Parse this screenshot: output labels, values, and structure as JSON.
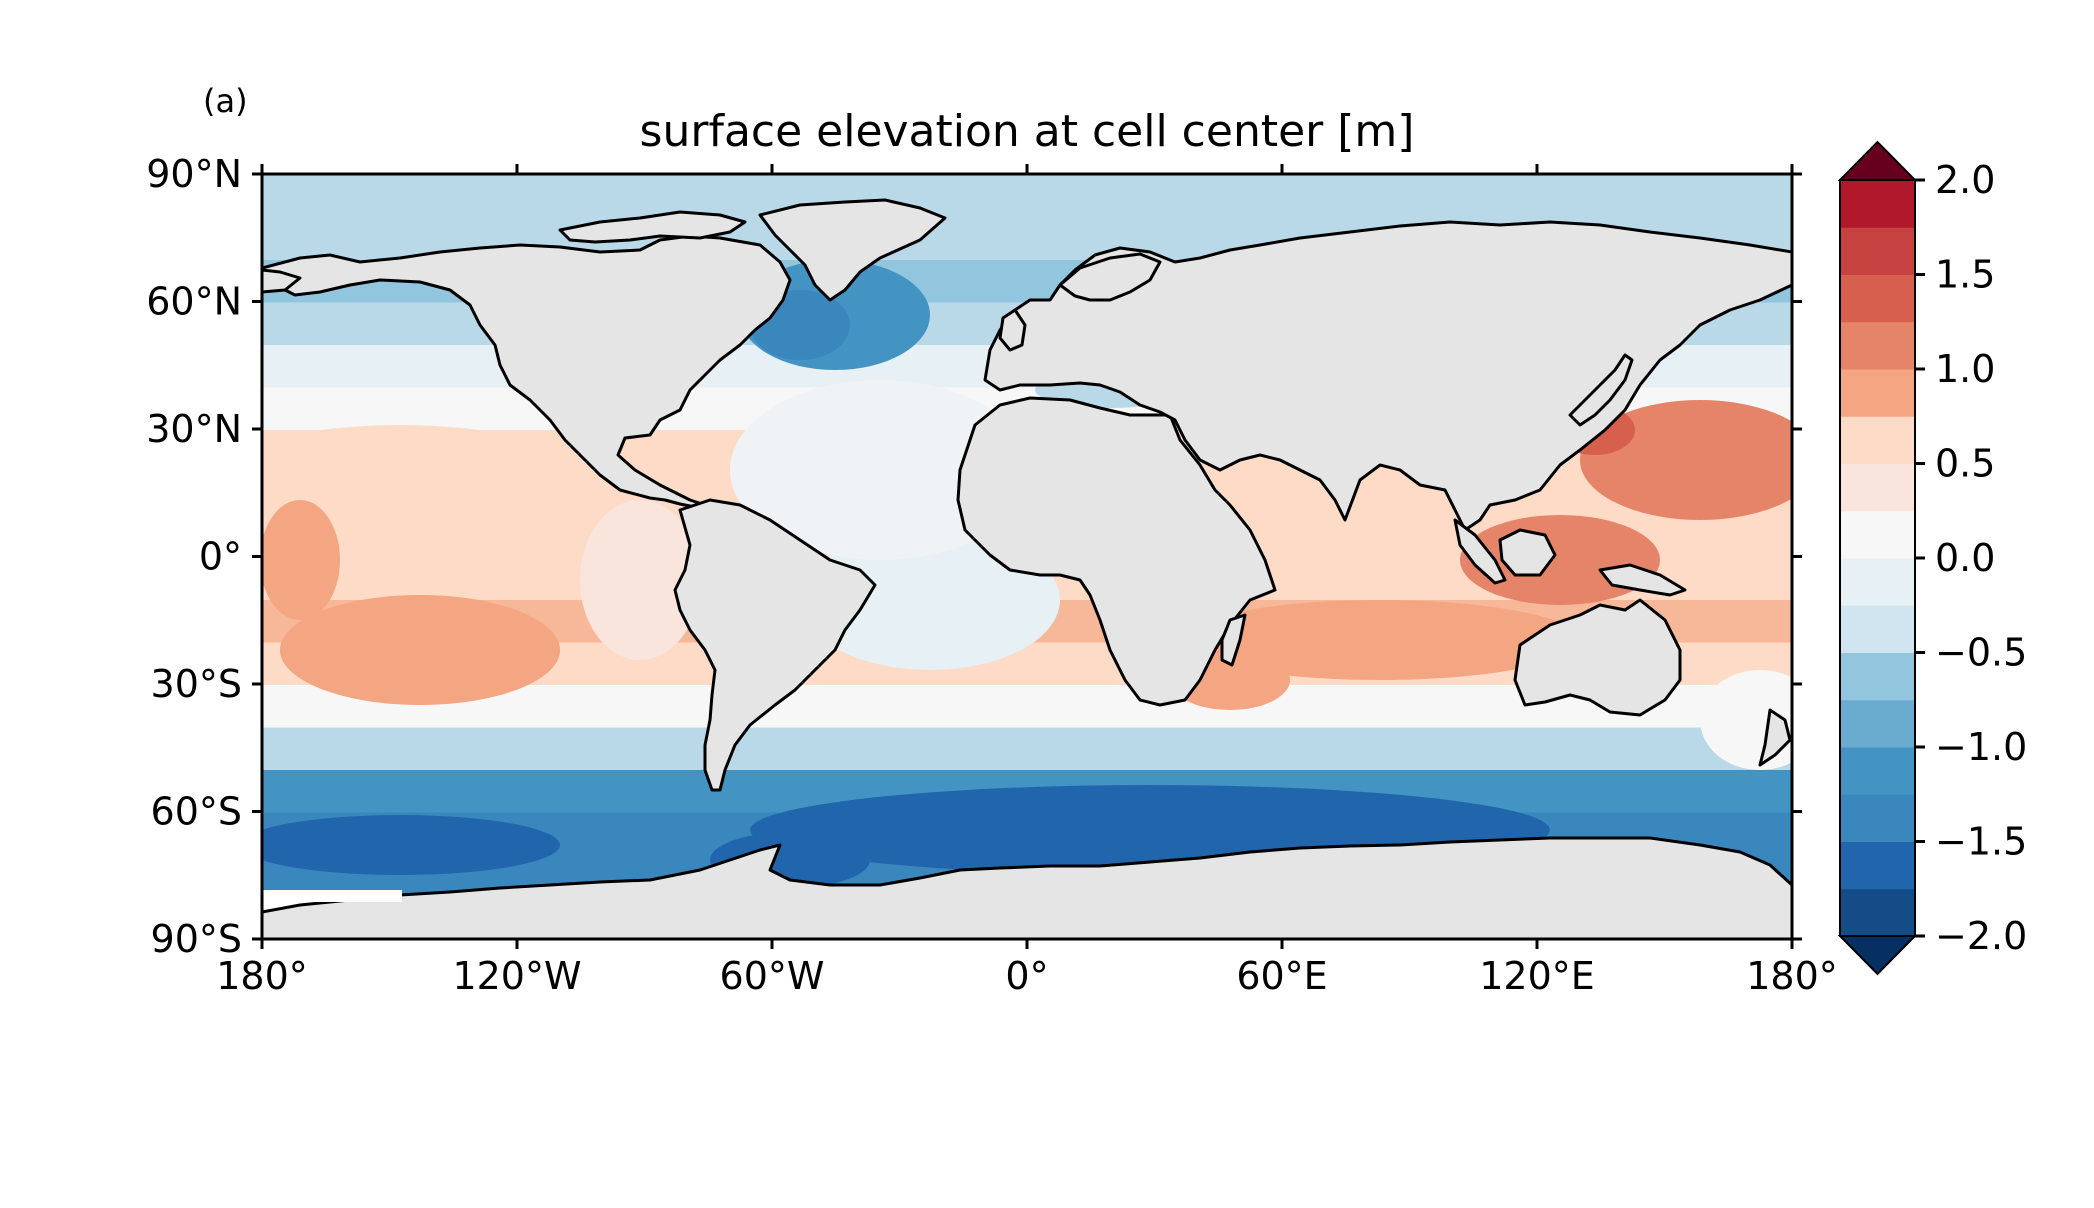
{
  "panel_label": "(a)",
  "title": "surface elevation at cell center [m]",
  "map": {
    "projection": "PlateCarree",
    "lon_range": [
      -180,
      180
    ],
    "lat_range": [
      -90,
      90
    ],
    "x_tick_values": [
      -180,
      -120,
      -60,
      0,
      60,
      120,
      180
    ],
    "x_tick_labels": [
      "180°",
      "120°W",
      "60°W",
      "0°",
      "60°E",
      "120°E",
      "180°"
    ],
    "y_tick_values": [
      90,
      60,
      30,
      0,
      -30,
      -60,
      -90
    ],
    "y_tick_labels": [
      "90°N",
      "60°N",
      "30°N",
      "0°",
      "30°S",
      "60°S",
      "90°S"
    ],
    "land_color": "#e5e5e5",
    "coastline_color": "#000000"
  },
  "colorbar": {
    "colormap": "RdBu_r",
    "range": [
      -2.0,
      2.0
    ],
    "step": 0.25,
    "extend": "both",
    "tick_values": [
      2.0,
      1.5,
      1.0,
      0.5,
      0.0,
      -0.5,
      -1.0,
      -1.5,
      -2.0
    ],
    "tick_labels": [
      "2.0",
      "1.5",
      "1.0",
      "0.5",
      "0.0",
      "−0.5",
      "−1.0",
      "−1.5",
      "−2.0"
    ],
    "colors": [
      "#053061",
      "#134c87",
      "#2166ac",
      "#3a87bd",
      "#4393c3",
      "#6aacd0",
      "#92c5de",
      "#b9d9e9",
      "#d1e5f0",
      "#e6f0f5",
      "#f7f7f7",
      "#f9e5dc",
      "#fddbc7",
      "#f7b899",
      "#f4a582",
      "#e58468",
      "#d6604d",
      "#c54241",
      "#b2182b",
      "#8a0b25",
      "#67001f"
    ]
  },
  "chart_data": {
    "type": "heatmap",
    "title": "surface elevation at cell center [m]",
    "variable_units": "m",
    "zlim": [
      -2.0,
      2.0
    ],
    "zonal_profile_lat": [
      -75,
      -65,
      -55,
      -45,
      -35,
      -25,
      -15,
      -5,
      5,
      15,
      25,
      35,
      45,
      55,
      65,
      75,
      85
    ],
    "zonal_profile_value": [
      -1.4,
      -1.4,
      -1.2,
      -0.6,
      0.0,
      0.4,
      0.5,
      0.35,
      0.35,
      0.4,
      0.35,
      0.05,
      -0.2,
      -0.5,
      -0.7,
      -0.65,
      -0.6
    ]
  }
}
